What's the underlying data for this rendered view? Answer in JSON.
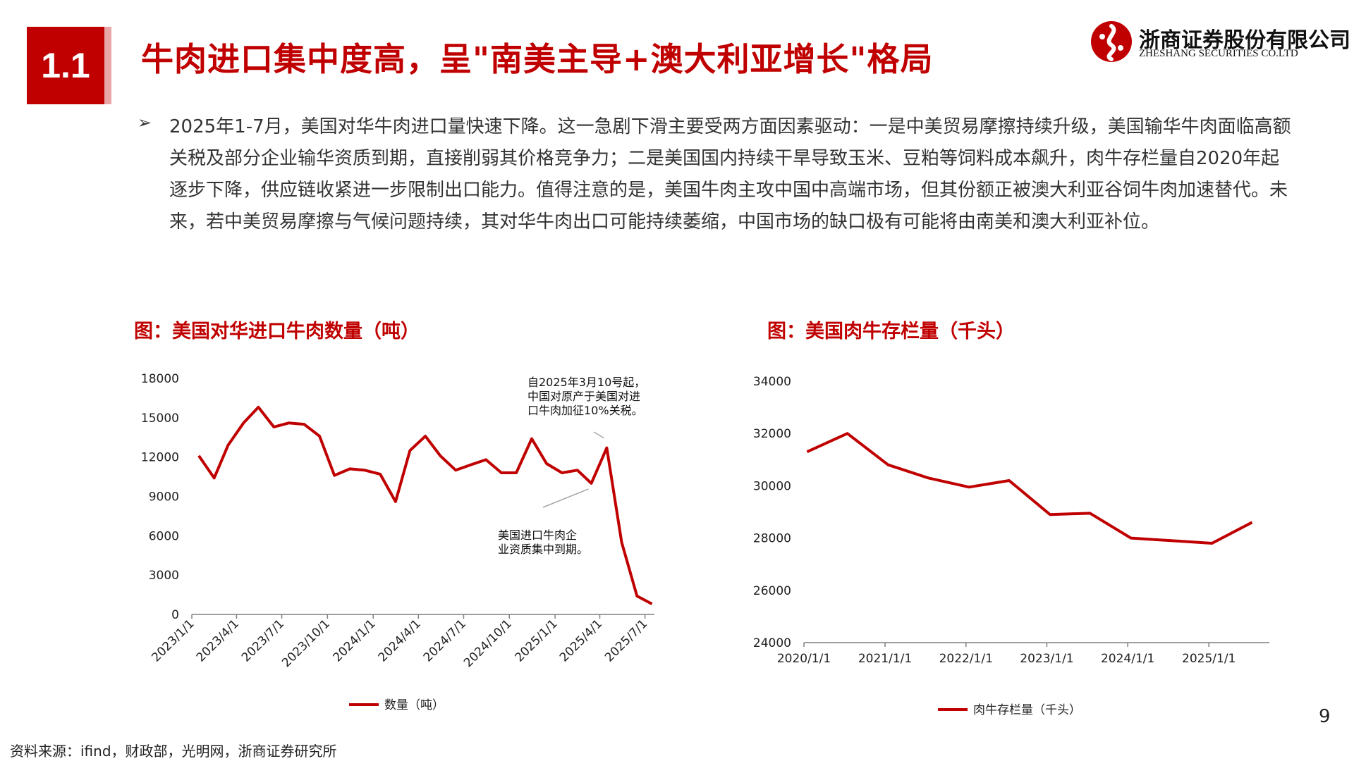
{
  "header": {
    "section_number": "1.1",
    "title": "牛肉进口集中度高，呈\"南美主导+澳大利亚增长\"格局",
    "logo_cn": "浙商证券股份有限公司",
    "logo_en": "ZHESHANG SECURITIES CO.LTD"
  },
  "body": {
    "bullet": "➢",
    "paragraph": "2025年1-7月，美国对华牛肉进口量快速下降。这一急剧下滑主要受两方面因素驱动：一是中美贸易摩擦持续升级，美国输华牛肉面临高额关税及部分企业输华资质到期，直接削弱其价格竞争力；二是美国国内持续干旱导致玉米、豆粕等饲料成本飙升，肉牛存栏量自2020年起逐步下降，供应链收紧进一步限制出口能力。值得注意的是，美国牛肉主攻中国中高端市场，但其份额正被澳大利亚谷饲牛肉加速替代。未来，若中美贸易摩擦与气候问题持续，其对华牛肉出口可能持续萎缩，中国市场的缺口极有可能将由南美和澳大利亚补位。"
  },
  "colors": {
    "accent": "#c00000",
    "axis": "#7f7f7f"
  },
  "chart_data": [
    {
      "type": "line",
      "title": "图：美国对华进口牛肉数量（吨）",
      "x_ticks": [
        "2023/1/1",
        "2023/4/1",
        "2023/7/1",
        "2023/10/1",
        "2024/1/1",
        "2024/4/1",
        "2024/7/1",
        "2024/10/1",
        "2025/1/1",
        "2025/4/1",
        "2025/7/1"
      ],
      "y_ticks": [
        "0",
        "3000",
        "6000",
        "9000",
        "12000",
        "15000",
        "18000"
      ],
      "ylim": [
        0,
        18000
      ],
      "xlim": [
        "2023/1/1",
        "2025/7/20"
      ],
      "series": [
        {
          "name": "数量（吨）",
          "x": [
            "2023/1",
            "2023/2",
            "2023/3",
            "2023/4",
            "2023/5",
            "2023/6",
            "2023/7",
            "2023/8",
            "2023/9",
            "2023/10",
            "2023/11",
            "2023/12",
            "2024/1",
            "2024/2",
            "2024/3",
            "2024/4",
            "2024/5",
            "2024/6",
            "2024/7",
            "2024/8",
            "2024/9",
            "2024/10",
            "2024/11",
            "2024/12",
            "2025/1",
            "2025/2",
            "2025/3",
            "2025/4",
            "2025/5",
            "2025/6",
            "2025/7"
          ],
          "values": [
            12100,
            10400,
            12900,
            14600,
            15800,
            14300,
            14600,
            14500,
            13600,
            10600,
            11100,
            11000,
            10700,
            8600,
            12500,
            13600,
            12100,
            11000,
            11400,
            11800,
            10800,
            10800,
            13400,
            11500,
            10800,
            11000,
            10000,
            12700,
            5500,
            1400,
            800
          ]
        }
      ],
      "annotations": [
        {
          "text": [
            "自2025年3月10号起，",
            "中国对原产于美国对进",
            "口牛肉加征10%关税。"
          ],
          "target": "2025/4"
        },
        {
          "text": [
            "美国进口牛肉企",
            "业资质集中到期。"
          ],
          "target": "2025/3"
        }
      ],
      "legend": "bottom-center"
    },
    {
      "type": "line",
      "title": "图：美国肉牛存栏量（千头）",
      "x_ticks": [
        "2020/1/1",
        "2021/1/1",
        "2022/1/1",
        "2023/1/1",
        "2024/1/1",
        "2025/1/1"
      ],
      "y_ticks": [
        "24000",
        "26000",
        "28000",
        "30000",
        "32000",
        "34000"
      ],
      "ylim": [
        24000,
        34000
      ],
      "xlim": [
        "2020/1/1",
        "2025/10/1"
      ],
      "series": [
        {
          "name": "肉牛存栏量（千头）",
          "x": [
            "2020/1",
            "2020/7",
            "2021/1",
            "2021/7",
            "2022/1",
            "2022/7",
            "2023/1",
            "2023/7",
            "2024/1",
            "2024/7",
            "2025/1",
            "2025/7"
          ],
          "values": [
            31300,
            32000,
            30800,
            30300,
            29950,
            30200,
            28900,
            28950,
            28000,
            27900,
            27800,
            28600
          ]
        }
      ],
      "legend": "bottom-center"
    }
  ],
  "footer": {
    "source": "资料来源：ifind，财政部，光明网，浙商证券研究所",
    "page_number": "9"
  }
}
